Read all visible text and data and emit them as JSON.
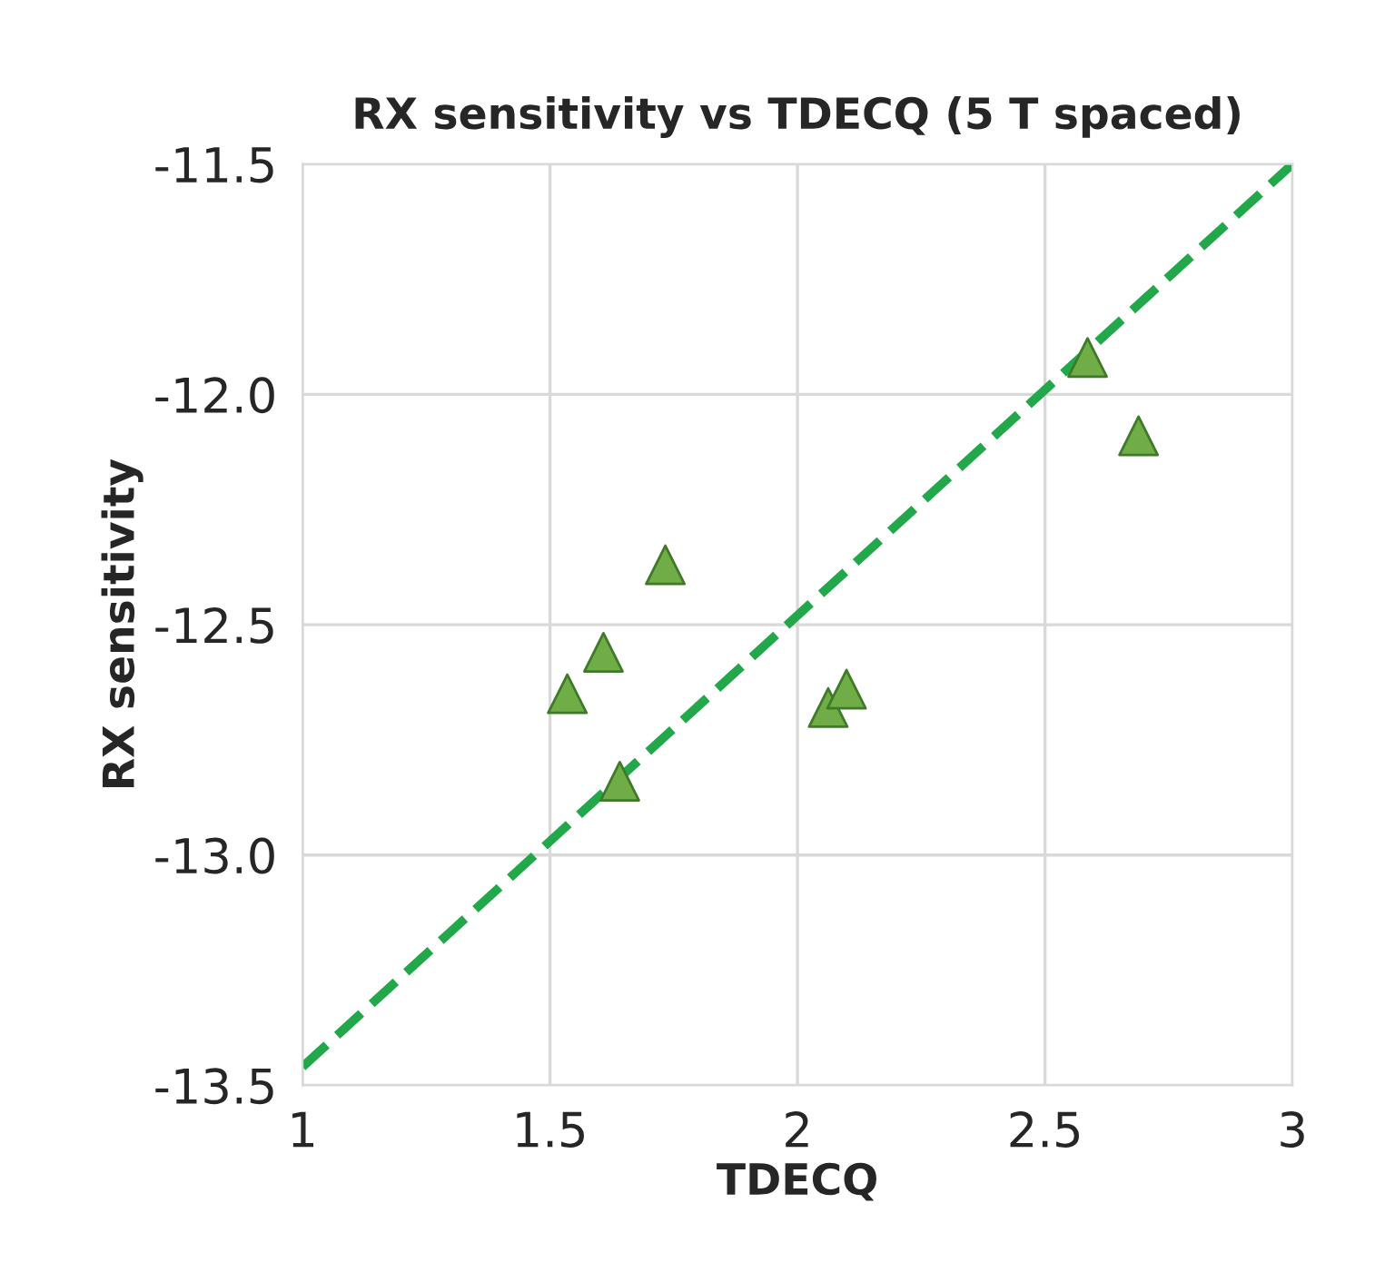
{
  "chart_data": {
    "type": "scatter",
    "title": "RX sensitivity vs TDECQ (5 T spaced)",
    "xlabel": "TDECQ",
    "ylabel": "RX sensitivity",
    "series": [
      {
        "color": "#70ad47",
        "marker": "triangle",
        "x": [
          1.535,
          1.608,
          1.641,
          1.733,
          2.062,
          2.099,
          2.586,
          2.689
        ],
        "values": [
          -12.65,
          -12.56,
          -12.84,
          -12.37,
          -12.68,
          -12.64,
          -11.92,
          -12.09
        ]
      },
      {
        "type": "line",
        "color": "#22a84a",
        "line_style": "dashed",
        "marker": "none",
        "x": [
          1,
          3
        ],
        "values": [
          -13.46,
          -11.5
        ]
      }
    ],
    "xlim": [
      1,
      3
    ],
    "xticks": [
      1,
      1.5,
      2,
      2.5,
      3
    ],
    "ylim": [
      -13.5,
      -11.5
    ],
    "yticks": [
      {
        "value": -13.5,
        "label": "-13.5"
      },
      {
        "value": -13.0,
        "label": "-13.0"
      },
      {
        "value": -12.5,
        "label": "-12.5"
      },
      {
        "value": -12.0,
        "label": "-12.0"
      },
      {
        "value": -11.5,
        "label": "-11.5"
      }
    ],
    "grid": true,
    "legend": false
  }
}
